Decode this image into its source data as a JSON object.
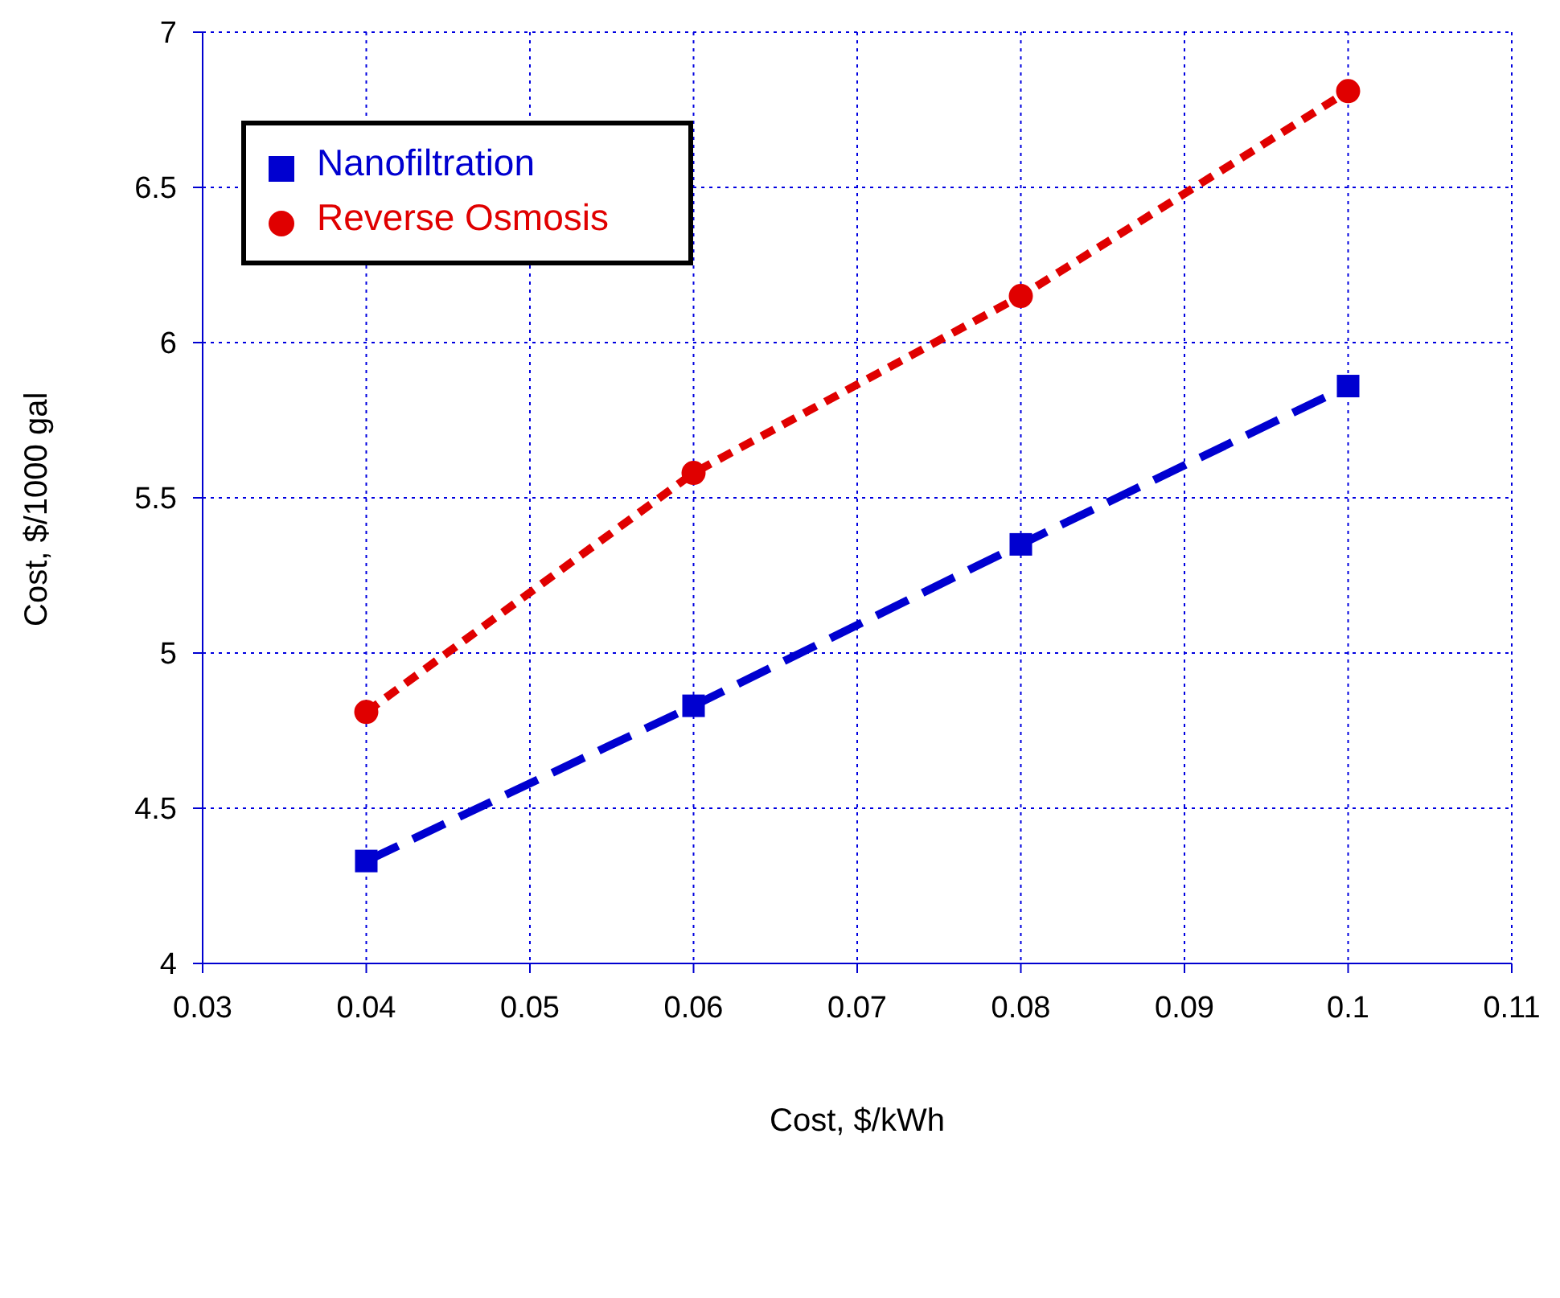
{
  "chart_data": {
    "type": "line",
    "xlabel": "Cost, $/kWh",
    "ylabel": "Cost, $/1000 gal",
    "x": [
      0.04,
      0.06,
      0.08,
      0.1
    ],
    "series": [
      {
        "name": "Reverse Osmosis",
        "color": "#e00000",
        "values": [
          4.81,
          5.58,
          6.15,
          6.81
        ],
        "marker": "circle",
        "line_style": "dashed"
      },
      {
        "name": "Nanofiltration",
        "color": "#0000d0",
        "values": [
          4.33,
          4.83,
          5.35,
          5.86
        ],
        "marker": "square",
        "line_style": "dashed"
      }
    ],
    "xlim": [
      0.03,
      0.11
    ],
    "xticks": [
      0.03,
      0.04,
      0.05,
      0.06,
      0.07,
      0.08,
      0.09,
      0.1,
      0.11
    ],
    "ylim": [
      4,
      7
    ],
    "yticks": [
      4,
      4.5,
      5,
      5.5,
      6,
      6.5,
      7
    ],
    "grid": true,
    "legend": "top left"
  }
}
